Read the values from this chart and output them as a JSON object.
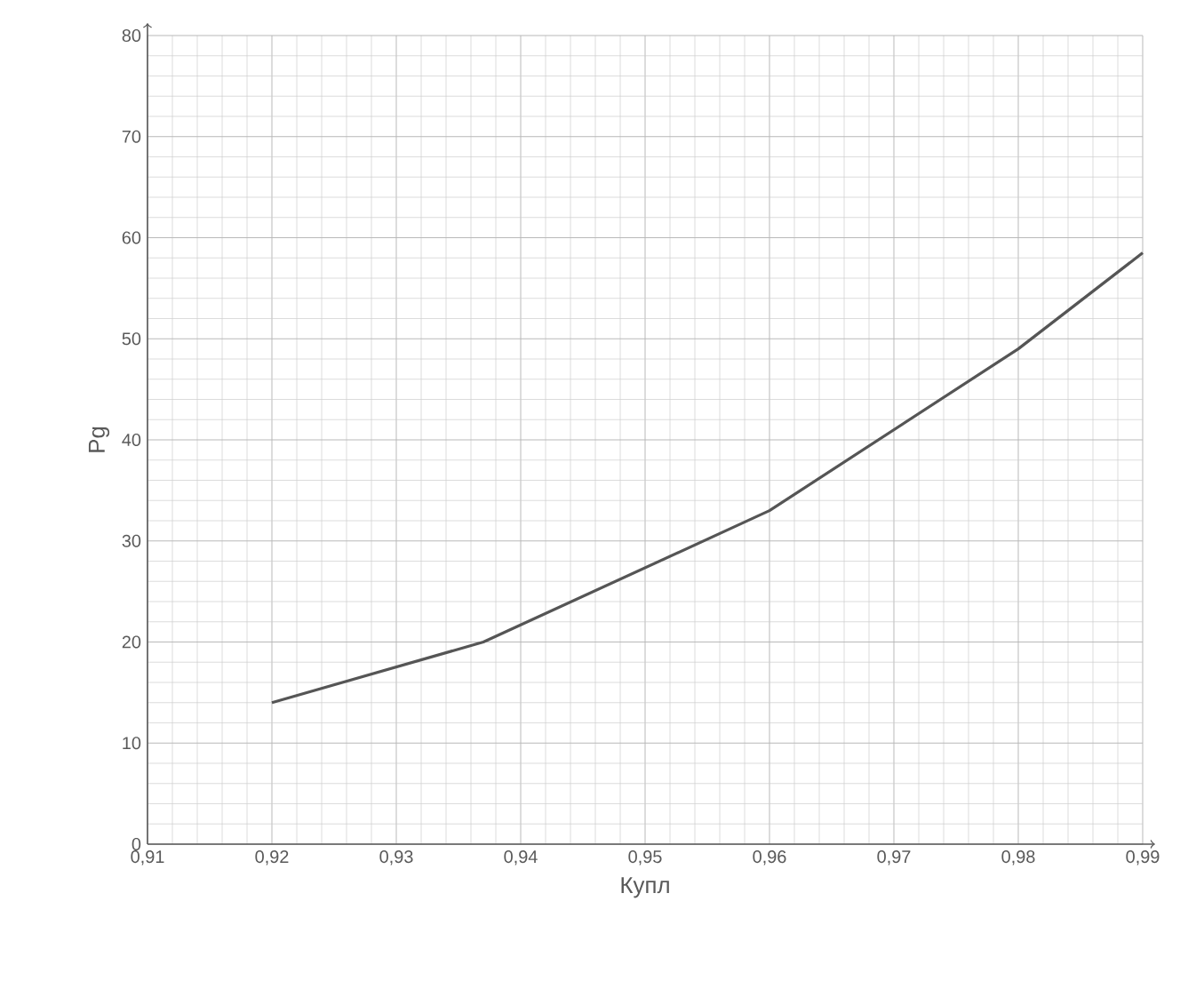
{
  "chart_data": {
    "type": "line",
    "xlabel": "Купл",
    "ylabel": "Pg",
    "x": [
      0.92,
      0.937,
      0.96,
      0.98,
      0.99
    ],
    "series": [
      {
        "color": "#555555",
        "values": [
          14,
          20,
          33,
          49,
          58.5
        ]
      }
    ],
    "xlim": [
      0.91,
      0.99
    ],
    "xticks": [
      {
        "value": 0.91,
        "label": "0,91"
      },
      {
        "value": 0.92,
        "label": "0,92"
      },
      {
        "value": 0.93,
        "label": "0,93"
      },
      {
        "value": 0.94,
        "label": "0,94"
      },
      {
        "value": 0.95,
        "label": "0,95"
      },
      {
        "value": 0.96,
        "label": "0,96"
      },
      {
        "value": 0.97,
        "label": "0,97"
      },
      {
        "value": 0.98,
        "label": "0,98"
      },
      {
        "value": 0.99,
        "label": "0,99"
      }
    ],
    "ylim": [
      0,
      80
    ],
    "yticks": [
      0,
      10,
      20,
      30,
      40,
      50,
      60,
      70,
      80
    ],
    "grid": true
  }
}
